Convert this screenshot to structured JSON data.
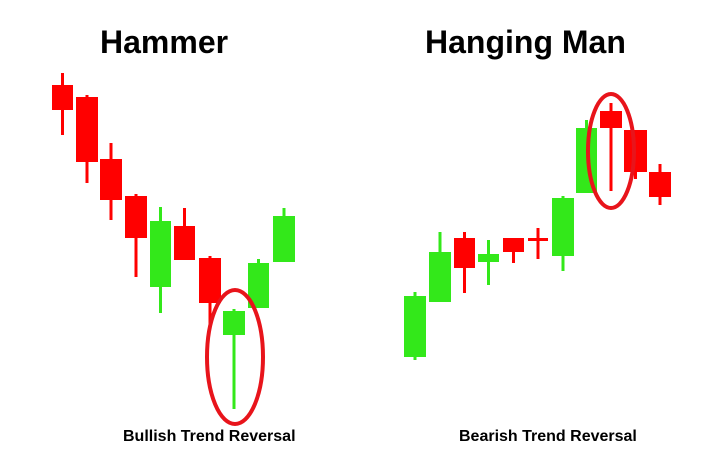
{
  "colors": {
    "bullish": "#33e81a",
    "bearish": "#ff0000",
    "highlight": "#e8141b"
  },
  "panels": [
    {
      "title": "Hammer",
      "caption": "Bullish Trend Reversal"
    },
    {
      "title": "Hanging Man",
      "caption": "Bearish Trend Reversal"
    }
  ]
}
